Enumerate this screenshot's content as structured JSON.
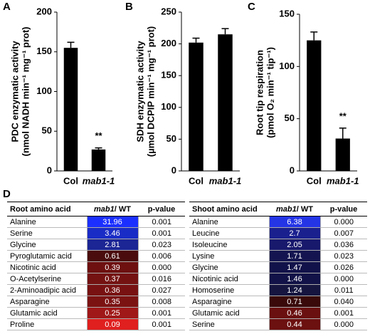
{
  "chart_data": [
    {
      "type": "bar",
      "panel_label": "A",
      "ylabel": [
        "PDC enzymatic activity",
        "(nmol NADH min⁻¹ mg⁻¹ prot)"
      ],
      "categories": [
        "Col",
        "mab1-1"
      ],
      "values": [
        155,
        27
      ],
      "errors": [
        7,
        2
      ],
      "value_annotations": [
        null,
        "**"
      ],
      "color": "#000000",
      "ylim": [
        0,
        200
      ],
      "yticks": [
        0,
        50,
        100,
        150,
        200
      ]
    },
    {
      "type": "bar",
      "panel_label": "B",
      "ylabel": [
        "SDH enzymatic activity",
        "(µmol DCPIP min⁻¹ mg⁻¹ prot)"
      ],
      "categories": [
        "Col",
        "mab1-1"
      ],
      "values": [
        202,
        215
      ],
      "errors": [
        7,
        9
      ],
      "value_annotations": [
        null,
        null
      ],
      "color": "#000000",
      "ylim": [
        0,
        250
      ],
      "yticks": [
        0,
        50,
        100,
        150,
        200,
        250
      ]
    },
    {
      "type": "bar",
      "panel_label": "C",
      "ylabel": [
        "Root tip respiration",
        "(pmol O₂ min⁻¹ tip⁻¹)"
      ],
      "categories": [
        "Col",
        "mab1-1"
      ],
      "values": [
        125,
        31
      ],
      "errors": [
        8,
        10
      ],
      "value_annotations": [
        null,
        "**"
      ],
      "color": "#000000",
      "ylim": [
        0,
        150
      ],
      "yticks": [
        0,
        50,
        100,
        150
      ]
    }
  ],
  "table": {
    "panel_label": "D",
    "halves": [
      {
        "header": [
          "Root amino acid",
          [
            "mab1",
            "/ WT"
          ],
          "p-value"
        ],
        "rows": [
          [
            "Alanine",
            "31.96",
            "0.001"
          ],
          [
            "Serine",
            "3.46",
            "0.001"
          ],
          [
            "Glycine",
            "2.81",
            "0.023"
          ],
          [
            "Pyroglutamic acid",
            "0.61",
            "0.006"
          ],
          [
            "Nicotinic acid",
            "0.39",
            "0.000"
          ],
          [
            "O-Acetylserine",
            "0.37",
            "0.016"
          ],
          [
            "2-Aminoadipic acid",
            "0.36",
            "0.027"
          ],
          [
            "Asparagine",
            "0.35",
            "0.008"
          ],
          [
            "Glutamic acid",
            "0.25",
            "0.001"
          ],
          [
            "Proline",
            "0.09",
            "0.001"
          ]
        ],
        "colors": [
          "#1b30ff",
          "#1a2cc6",
          "#1c2694",
          "#4a0c0c",
          "#6e1010",
          "#741212",
          "#781212",
          "#7c1313",
          "#a01818",
          "#e01f1f"
        ]
      },
      {
        "header": [
          "Shoot amino acid",
          [
            "mab1",
            "/ WT"
          ],
          "p-value"
        ],
        "rows": [
          [
            "Alanine",
            "6.38",
            "0.000"
          ],
          [
            "Leucine",
            "2.7",
            "0.007"
          ],
          [
            "Isoleucine",
            "2.05",
            "0.036"
          ],
          [
            "Lysine",
            "1.71",
            "0.023"
          ],
          [
            "Glycine",
            "1.47",
            "0.026"
          ],
          [
            "Nicotinic acid",
            "1.46",
            "0.000"
          ],
          [
            "Homoserine",
            "1.24",
            "0.011"
          ],
          [
            "Asparagine",
            "0.71",
            "0.040"
          ],
          [
            "Glutamic acid",
            "0.46",
            "0.001"
          ],
          [
            "Serine",
            "0.44",
            "0.000"
          ]
        ],
        "colors": [
          "#2435e6",
          "#1a208e",
          "#18196c",
          "#141550",
          "#12124a",
          "#121248",
          "#151540",
          "#3a0a0a",
          "#6a1010",
          "#6c1010"
        ]
      }
    ]
  }
}
